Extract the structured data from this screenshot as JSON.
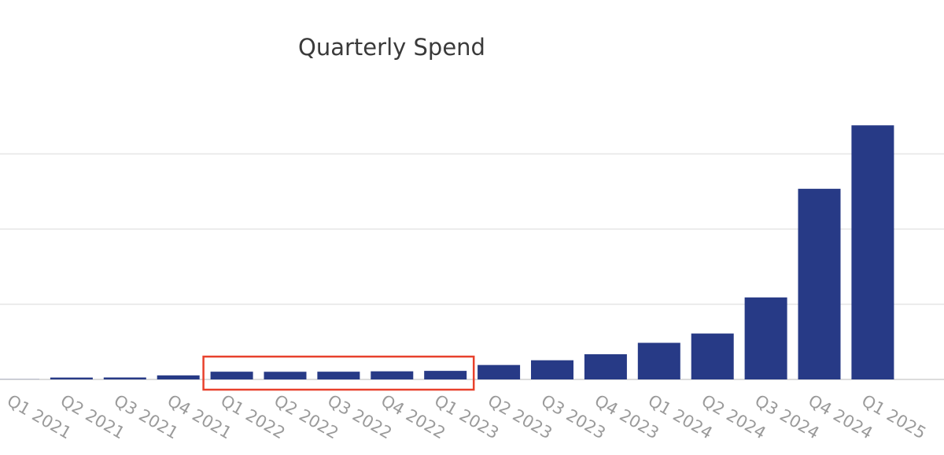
{
  "chart_data": {
    "type": "bar",
    "title": "Quarterly Spend",
    "xlabel": "",
    "ylabel": "",
    "categories": [
      "Q1 2021",
      "Q2 2021",
      "Q3 2021",
      "Q4 2021",
      "Q1 2022",
      "Q2 2022",
      "Q3 2022",
      "Q4 2022",
      "Q1 2023",
      "Q2 2023",
      "Q3 2023",
      "Q4 2023",
      "Q1 2024",
      "Q2 2024",
      "Q3 2024",
      "Q4 2024",
      "Q1 2025"
    ],
    "values": [
      0.2,
      2.5,
      2.6,
      5.4,
      10.3,
      10.2,
      10.3,
      10.8,
      11.4,
      19.2,
      25.5,
      33.5,
      48.7,
      61.1,
      109.1,
      253.6,
      338.0
    ],
    "ylim": [
      0,
      400
    ],
    "y_gridlines": [
      100,
      200,
      300
    ],
    "y_tick_labels_visible": false,
    "grid": true,
    "bar_color": "#273a86",
    "grid_color": "#e6e6e6",
    "highlight": {
      "categories": [
        "Q1 2022",
        "Q2 2022",
        "Q3 2022",
        "Q4 2022",
        "Q1 2023"
      ],
      "color": "#e8412c"
    }
  }
}
